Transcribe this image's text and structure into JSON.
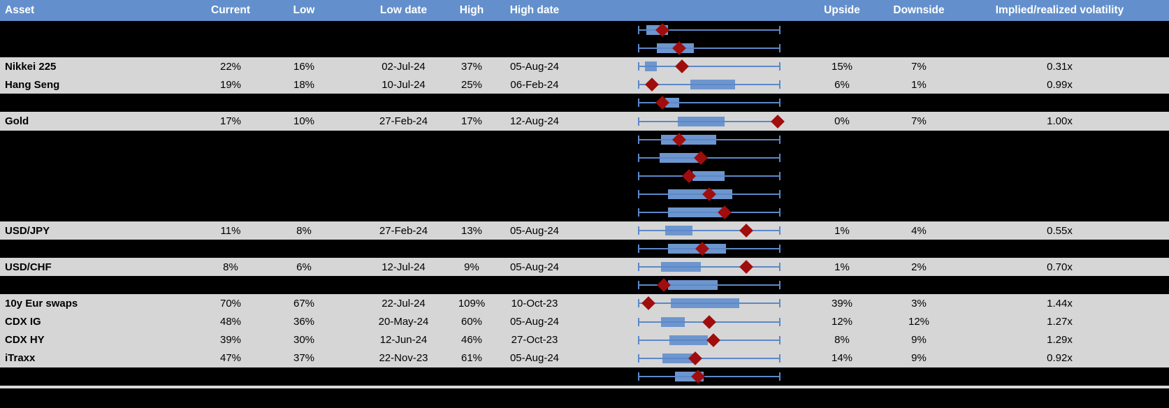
{
  "colors": {
    "header_bg": "#6390CC",
    "header_text": "#FFFFFF",
    "row_gray": "#D6D6D6",
    "redacted_bg": "#000000",
    "box_fill": "#6D96CE",
    "whisker": "#5C88C8",
    "marker": "#A00D0D",
    "separator": "#D9D9D9",
    "text": "#000000"
  },
  "table": {
    "columns": [
      "Asset",
      "Current",
      "Low",
      "Low date",
      "High",
      "High date",
      "Upside",
      "Downside",
      "Implied/realized volatility"
    ]
  },
  "chart_data": {
    "type": "boxplot",
    "orientation": "horizontal",
    "x_range": [
      0,
      1
    ],
    "units": "normalized position along whisker span (whisker ends fixed at 0 and 1)",
    "legend": "blue box = interquartile range, blue line = min-max whisker, red diamond = marker",
    "rows": [
      {
        "type": "redacted",
        "asset": "",
        "current": "",
        "low": "",
        "low_date": "",
        "high": "",
        "high_date": "",
        "upside": "",
        "downside": "",
        "impl_real": "",
        "box": [
          0.06,
          0.21
        ],
        "marker": 0.17
      },
      {
        "type": "redacted",
        "asset": "",
        "current": "",
        "low": "",
        "low_date": "",
        "high": "",
        "high_date": "",
        "upside": "",
        "downside": "",
        "impl_real": "",
        "box": [
          0.13,
          0.39
        ],
        "marker": 0.29
      },
      {
        "type": "data",
        "asset": "Nikkei 225",
        "current": "22%",
        "low": "16%",
        "low_date": "02-Jul-24",
        "high": "37%",
        "high_date": "05-Aug-24",
        "upside": "15%",
        "downside": "7%",
        "impl_real": "0.31x",
        "box": [
          0.05,
          0.13
        ],
        "marker": 0.31
      },
      {
        "type": "data",
        "asset": "Hang Seng",
        "current": "19%",
        "low": "18%",
        "low_date": "10-Jul-24",
        "high": "25%",
        "high_date": "06-Feb-24",
        "upside": "6%",
        "downside": "1%",
        "impl_real": "0.99x",
        "box": [
          0.37,
          0.68
        ],
        "marker": 0.1
      },
      {
        "type": "redacted",
        "asset": "",
        "current": "",
        "low": "",
        "low_date": "",
        "high": "",
        "high_date": "",
        "upside": "",
        "downside": "",
        "impl_real": "",
        "box": [
          0.19,
          0.29
        ],
        "marker": 0.17
      },
      {
        "type": "data",
        "asset": "Gold",
        "current": "17%",
        "low": "10%",
        "low_date": "27-Feb-24",
        "high": "17%",
        "high_date": "12-Aug-24",
        "upside": "0%",
        "downside": "7%",
        "impl_real": "1.00x",
        "box": [
          0.28,
          0.61
        ],
        "marker": 0.98
      },
      {
        "type": "redacted",
        "asset": "",
        "current": "",
        "low": "",
        "low_date": "",
        "high": "",
        "high_date": "",
        "upside": "",
        "downside": "",
        "impl_real": "",
        "box": [
          0.16,
          0.55
        ],
        "marker": 0.29
      },
      {
        "type": "redacted",
        "asset": "",
        "current": "",
        "low": "",
        "low_date": "",
        "high": "",
        "high_date": "",
        "upside": "",
        "downside": "",
        "impl_real": "",
        "box": [
          0.15,
          0.45
        ],
        "marker": 0.44
      },
      {
        "type": "redacted",
        "asset": "",
        "current": "",
        "low": "",
        "low_date": "",
        "high": "",
        "high_date": "",
        "upside": "",
        "downside": "",
        "impl_real": "",
        "box": [
          0.38,
          0.61
        ],
        "marker": 0.36
      },
      {
        "type": "redacted",
        "asset": "",
        "current": "",
        "low": "",
        "low_date": "",
        "high": "",
        "high_date": "",
        "upside": "",
        "downside": "",
        "impl_real": "",
        "box": [
          0.21,
          0.66
        ],
        "marker": 0.5
      },
      {
        "type": "redacted",
        "asset": "",
        "current": "",
        "low": "",
        "low_date": "",
        "high": "",
        "high_date": "",
        "upside": "",
        "downside": "",
        "impl_real": "",
        "box": [
          0.21,
          0.62
        ],
        "marker": 0.61
      },
      {
        "type": "data",
        "asset": "USD/JPY",
        "current": "11%",
        "low": "8%",
        "low_date": "27-Feb-24",
        "high": "13%",
        "high_date": "05-Aug-24",
        "upside": "1%",
        "downside": "4%",
        "impl_real": "0.55x",
        "box": [
          0.19,
          0.38
        ],
        "marker": 0.76
      },
      {
        "type": "redacted",
        "asset": "",
        "current": "",
        "low": "",
        "low_date": "",
        "high": "",
        "high_date": "",
        "upside": "",
        "downside": "",
        "impl_real": "",
        "box": [
          0.21,
          0.62
        ],
        "marker": 0.45
      },
      {
        "type": "data",
        "asset": "USD/CHF",
        "current": "8%",
        "low": "6%",
        "low_date": "12-Jul-24",
        "high": "9%",
        "high_date": "05-Aug-24",
        "upside": "1%",
        "downside": "2%",
        "impl_real": "0.70x",
        "box": [
          0.16,
          0.44
        ],
        "marker": 0.76
      },
      {
        "type": "redacted",
        "asset": "",
        "current": "",
        "low": "",
        "low_date": "",
        "high": "",
        "high_date": "",
        "upside": "",
        "downside": "",
        "impl_real": "",
        "box": [
          0.21,
          0.56
        ],
        "marker": 0.18
      },
      {
        "type": "data",
        "asset": "10y Eur swaps",
        "current": "70%",
        "low": "67%",
        "low_date": "22-Jul-24",
        "high": "109%",
        "high_date": "10-Oct-23",
        "upside": "39%",
        "downside": "3%",
        "impl_real": "1.44x",
        "box": [
          0.23,
          0.71
        ],
        "marker": 0.075
      },
      {
        "type": "data",
        "asset": "CDX IG",
        "current": "48%",
        "low": "36%",
        "low_date": "20-May-24",
        "high": "60%",
        "high_date": "05-Aug-24",
        "upside": "12%",
        "downside": "12%",
        "impl_real": "1.27x",
        "box": [
          0.16,
          0.33
        ],
        "marker": 0.5
      },
      {
        "type": "data",
        "asset": "CDX HY",
        "current": "39%",
        "low": "30%",
        "low_date": "12-Jun-24",
        "high": "46%",
        "high_date": "27-Oct-23",
        "upside": "8%",
        "downside": "9%",
        "impl_real": "1.29x",
        "box": [
          0.22,
          0.49
        ],
        "marker": 0.53
      },
      {
        "type": "data",
        "asset": "iTraxx",
        "current": "47%",
        "low": "37%",
        "low_date": "22-Nov-23",
        "high": "61%",
        "high_date": "05-Aug-24",
        "upside": "14%",
        "downside": "9%",
        "impl_real": "0.92x",
        "box": [
          0.17,
          0.39
        ],
        "marker": 0.4
      },
      {
        "type": "redacted",
        "asset": "",
        "current": "",
        "low": "",
        "low_date": "",
        "high": "",
        "high_date": "",
        "upside": "",
        "downside": "",
        "impl_real": "",
        "box": [
          0.26,
          0.46
        ],
        "marker": 0.42
      }
    ]
  }
}
